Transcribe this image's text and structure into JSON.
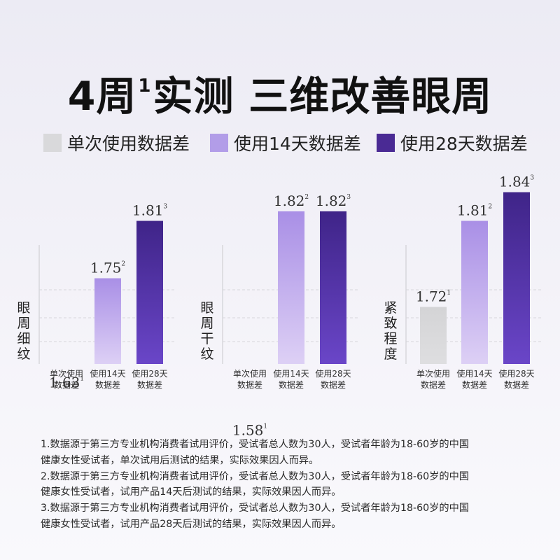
{
  "title": {
    "main_a": "4周",
    "sup": "1",
    "main_b": "实测 三维改善眼周"
  },
  "legend": [
    {
      "label": "单次使用数据差",
      "color": "#d9d9db"
    },
    {
      "label": "使用14天数据差",
      "color": "#b29de8"
    },
    {
      "label": "使用28天数据差",
      "color": "#4a2a94"
    }
  ],
  "colors": {
    "gray_top": "#d4d4d6",
    "gray_bottom": "#dedee0",
    "light_top": "#a98fe6",
    "light_bottom": "#ddd0f5",
    "dark_top": "#3f2488",
    "dark_bottom": "#6a46c8"
  },
  "chart_data": [
    {
      "type": "bar",
      "ylabel": "眼周细纹",
      "categories": [
        "单次使用\n数据差",
        "使用14天\n数据差",
        "使用28天\n数据差"
      ],
      "values": [
        1.63,
        1.75,
        1.81
      ],
      "value_labels": [
        "1.63",
        "1.75",
        "1.81"
      ],
      "footnotes": [
        "1",
        "2",
        "3"
      ]
    },
    {
      "type": "bar",
      "ylabel": "眼周干纹",
      "categories": [
        "单次使用\n数据差",
        "使用14天\n数据差",
        "使用28天\n数据差"
      ],
      "values": [
        1.58,
        1.82,
        1.82
      ],
      "value_labels": [
        "1.58",
        "1.82",
        "1.82"
      ],
      "footnotes": [
        "1",
        "2",
        "3"
      ]
    },
    {
      "type": "bar",
      "ylabel": "紧致程度",
      "categories": [
        "单次使用\n数据差",
        "使用14天\n数据差",
        "使用28天\n数据差"
      ],
      "values": [
        1.72,
        1.81,
        1.84
      ],
      "value_labels": [
        "1.72",
        "1.81",
        "1.84"
      ],
      "footnotes": [
        "1",
        "2",
        "3"
      ]
    }
  ],
  "notes": [
    "1.数据源于第三方专业机构消费者试用评价，受试者总人数为30人，受试者年龄为18-60岁的中国",
    "健康女性受试者，单次试用后测试的结果，实际效果因人而异。",
    "2.数据源于第三方专业机构消费者试用评价，受试者总人数为30人，受试者年龄为18-60岁的中国",
    "健康女性受试者，试用产品14天后测试的结果，实际效果因人而异。",
    "3.数据源于第三方专业机构消费者试用评价，受试者总人数为30人，受试者年龄为18-60岁的中国",
    "健康女性受试者，试用产品28天后测试的结果，实际效果因人而异。"
  ]
}
